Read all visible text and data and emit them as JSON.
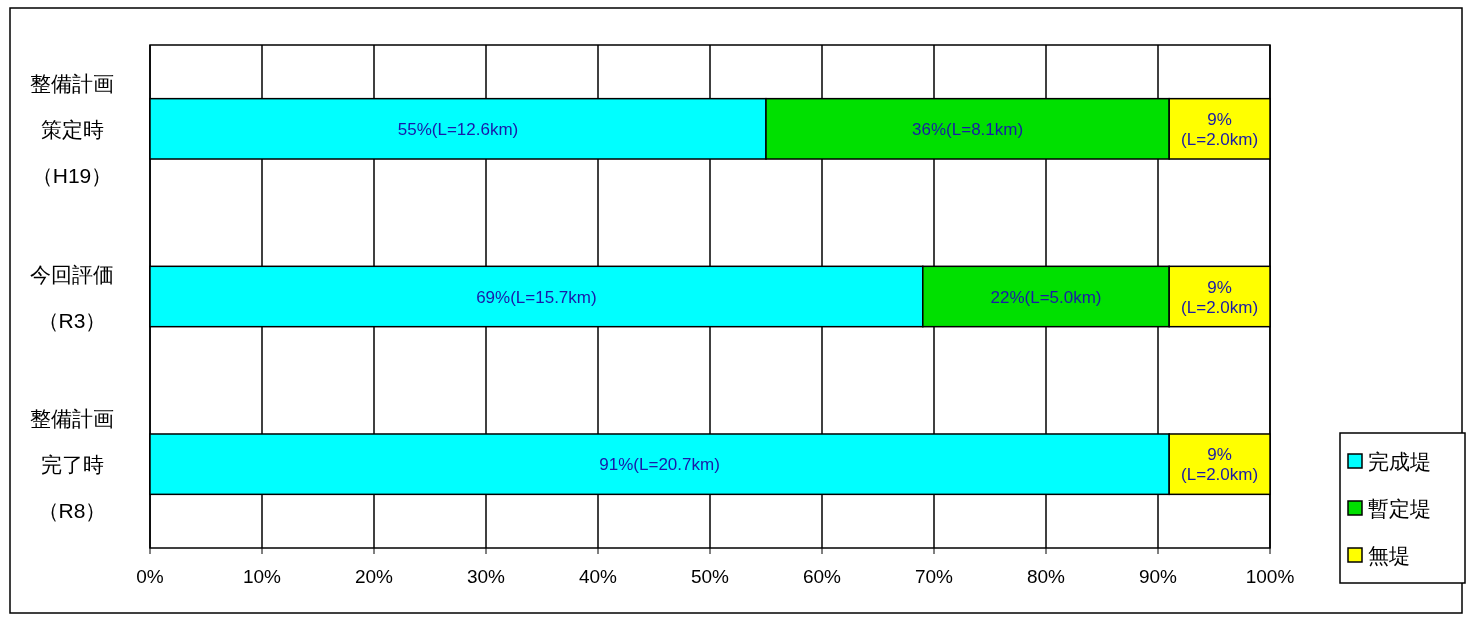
{
  "chart_data": {
    "type": "bar",
    "orientation": "horizontal",
    "stacked": true,
    "categories": [
      "整備計画策定時（H19）",
      "今回評価（R3）",
      "整備計画完了時（R8）"
    ],
    "series": [
      {
        "name": "完成堤",
        "color": "#00ffff",
        "values": [
          55,
          69,
          91
        ],
        "value_labels": [
          "55%(L=12.6km)",
          "69%(L=15.7km)",
          "91%(L=20.7km)"
        ]
      },
      {
        "name": "暫定堤",
        "color": "#00e000",
        "values": [
          36,
          22,
          null
        ],
        "value_labels": [
          "36%(L=8.1km)",
          "22%(L=5.0km)",
          null
        ]
      },
      {
        "name": "無堤",
        "color": "#ffff00",
        "values": [
          9,
          9,
          9
        ],
        "value_labels": [
          "9%\n(L=2.0km)",
          "9%\n(L=2.0km)",
          "9%\n(L=2.0km)"
        ]
      }
    ],
    "xlim": [
      0,
      100
    ],
    "xticks": [
      {
        "value": 0,
        "label": "0%"
      },
      {
        "value": 10,
        "label": "10%"
      },
      {
        "value": 20,
        "label": "20%"
      },
      {
        "value": 30,
        "label": "30%"
      },
      {
        "value": 40,
        "label": "40%"
      },
      {
        "value": 50,
        "label": "50%"
      },
      {
        "value": 60,
        "label": "60%"
      },
      {
        "value": 70,
        "label": "70%"
      },
      {
        "value": 80,
        "label": "80%"
      },
      {
        "value": 90,
        "label": "90%"
      },
      {
        "value": 100,
        "label": "100%"
      }
    ],
    "grid": "x",
    "legend": "right"
  }
}
